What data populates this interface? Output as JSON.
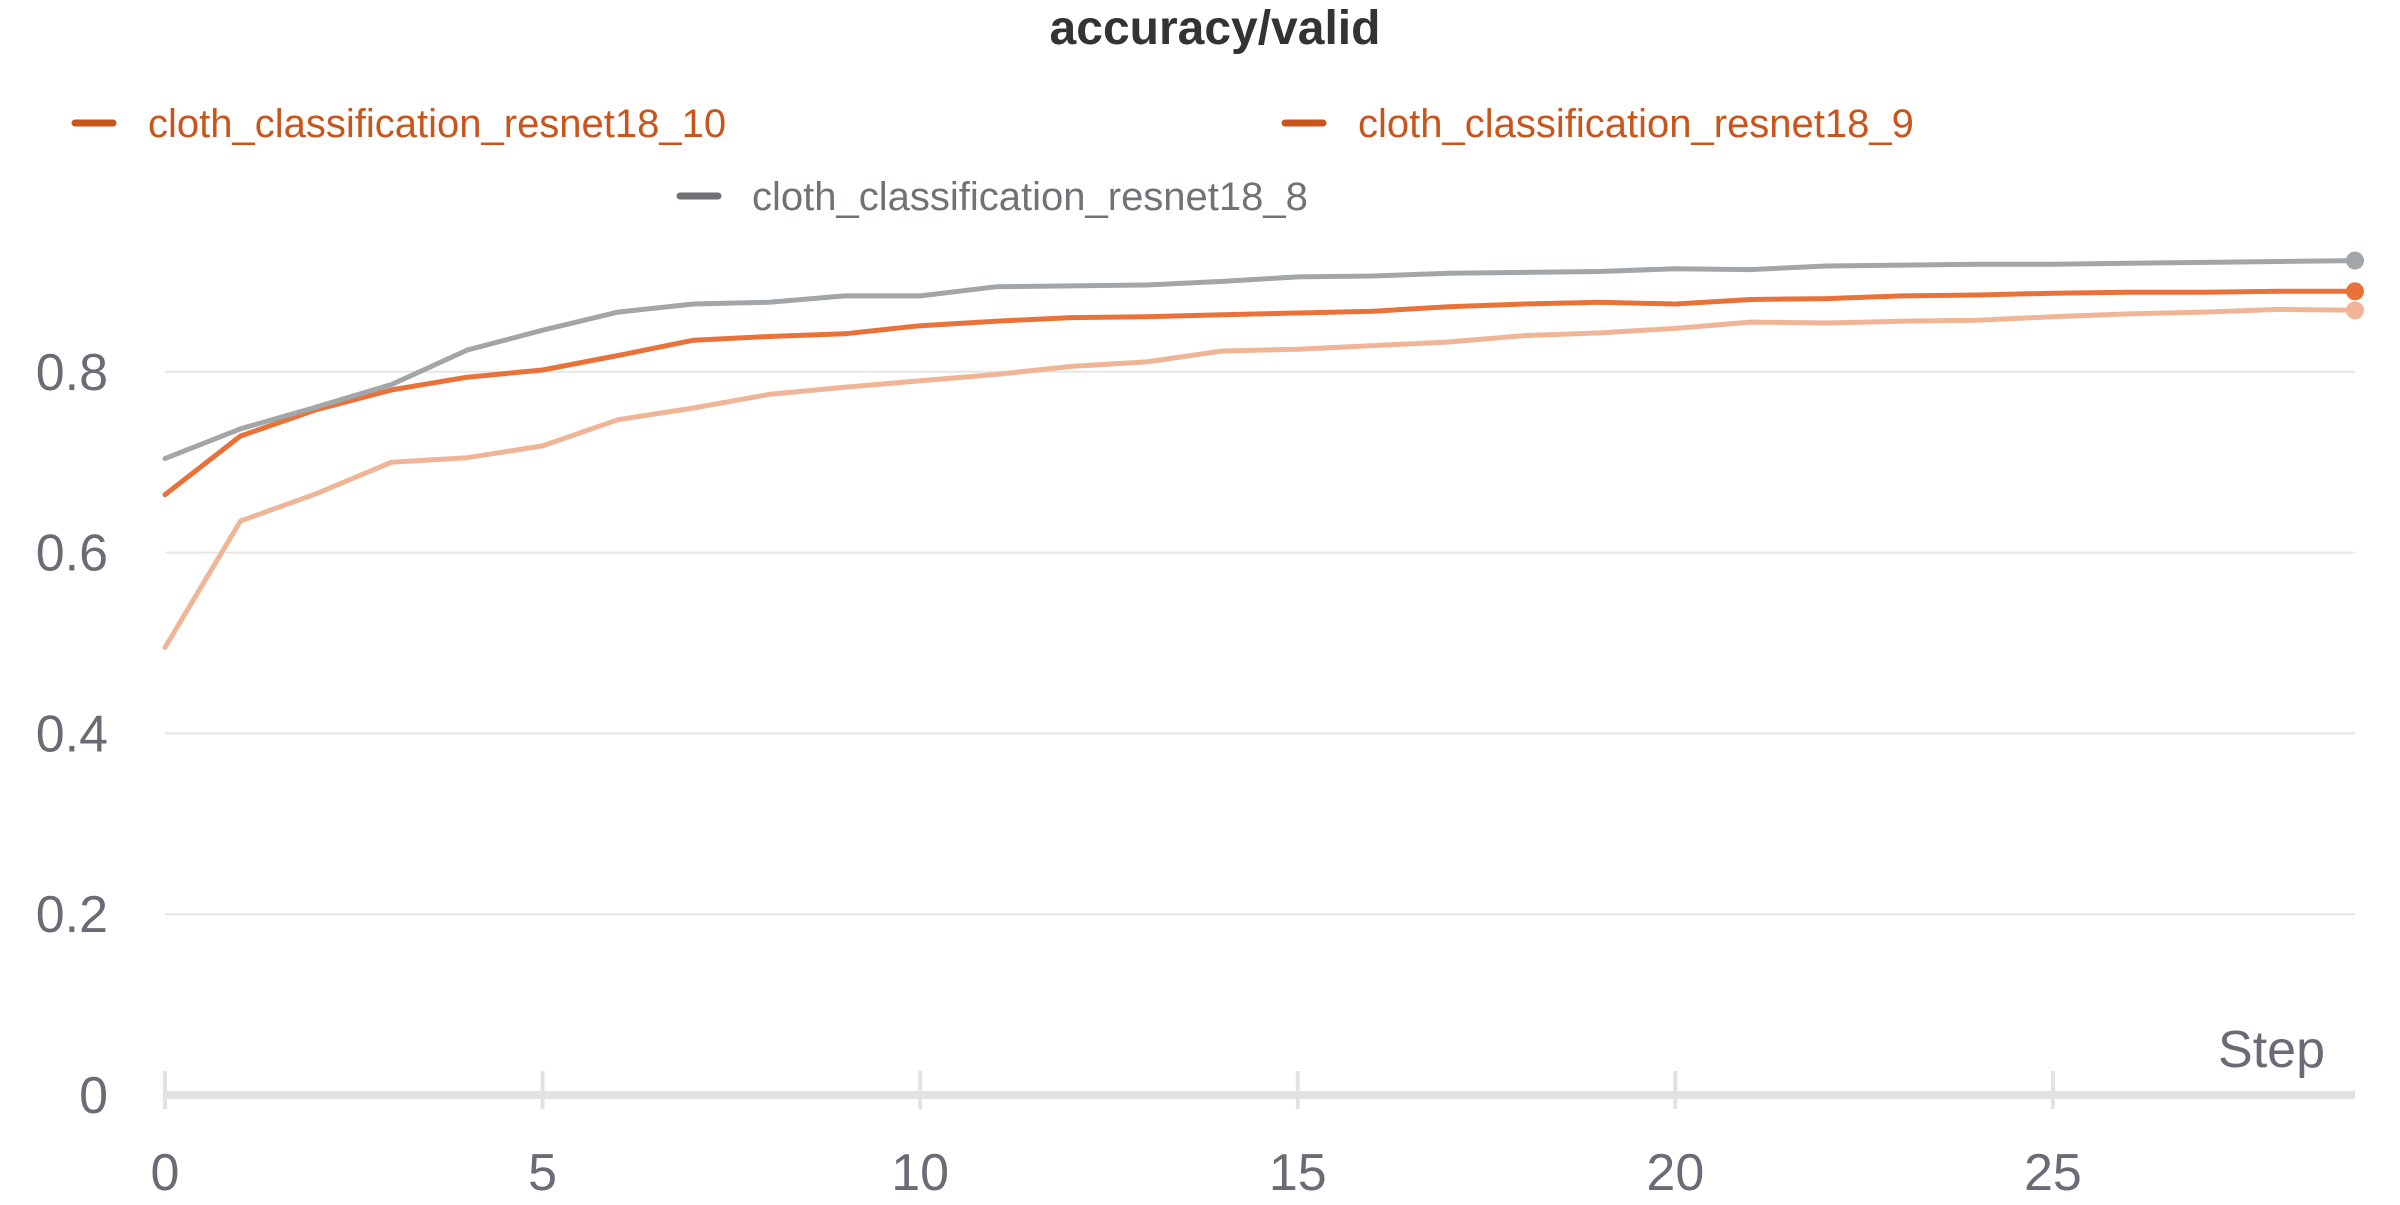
{
  "chart_data": {
    "type": "line",
    "title": "accuracy/valid",
    "xlabel": "Step",
    "ylabel": "",
    "xlim": [
      0,
      29
    ],
    "ylim": [
      0,
      1
    ],
    "x_ticks": [
      0,
      5,
      10,
      15,
      20,
      25
    ],
    "x_tick_labels": [
      "0",
      "5",
      "10",
      "15",
      "20",
      "25"
    ],
    "y_ticks": [
      0,
      0.2,
      0.4,
      0.6,
      0.8
    ],
    "y_tick_labels": [
      "0",
      "0.2",
      "0.4",
      "0.6",
      "0.8"
    ],
    "grid": true,
    "legend_position": "top",
    "x": [
      0,
      1,
      2,
      3,
      4,
      5,
      6,
      7,
      8,
      9,
      10,
      11,
      12,
      13,
      14,
      15,
      16,
      17,
      18,
      19,
      20,
      21,
      22,
      23,
      24,
      25,
      26,
      27,
      28,
      29
    ],
    "series": [
      {
        "name": "cloth_classification_resnet18_10",
        "color": "#f0b596",
        "legend_color": "#c8551b",
        "values": [
          0.495,
          0.635,
          0.665,
          0.7,
          0.705,
          0.718,
          0.747,
          0.76,
          0.775,
          0.783,
          0.79,
          0.797,
          0.806,
          0.811,
          0.823,
          0.825,
          0.829,
          0.833,
          0.84,
          0.843,
          0.848,
          0.855,
          0.854,
          0.856,
          0.857,
          0.861,
          0.864,
          0.866,
          0.869,
          0.868
        ]
      },
      {
        "name": "cloth_classification_resnet18_9",
        "color": "#e8723a",
        "legend_color": "#c8551b",
        "values": [
          0.664,
          0.729,
          0.758,
          0.78,
          0.794,
          0.802,
          0.818,
          0.835,
          0.839,
          0.842,
          0.851,
          0.856,
          0.86,
          0.861,
          0.863,
          0.865,
          0.867,
          0.872,
          0.875,
          0.877,
          0.875,
          0.88,
          0.881,
          0.884,
          0.885,
          0.887,
          0.888,
          0.888,
          0.889,
          0.889
        ]
      },
      {
        "name": "cloth_classification_resnet18_8",
        "color": "#a2a6a9",
        "legend_color": "#6f7378",
        "values": [
          0.704,
          0.737,
          0.761,
          0.786,
          0.824,
          0.846,
          0.866,
          0.875,
          0.877,
          0.884,
          0.884,
          0.894,
          0.895,
          0.896,
          0.9,
          0.905,
          0.906,
          0.909,
          0.91,
          0.911,
          0.914,
          0.913,
          0.917,
          0.918,
          0.919,
          0.919,
          0.92,
          0.921,
          0.922,
          0.923
        ]
      }
    ]
  },
  "colors": {
    "grid": "#e6e6e6",
    "axis": "#e2e2e2",
    "tick_text": "#6b6b76",
    "title_text": "#333333"
  }
}
